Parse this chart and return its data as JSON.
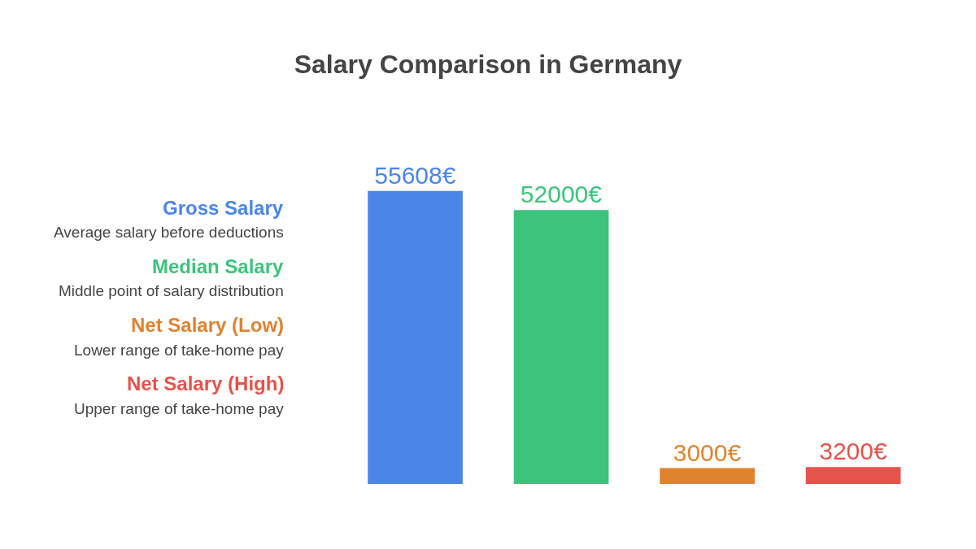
{
  "chart_data": {
    "type": "bar",
    "title": "Salary Comparison in Germany",
    "categories": [
      null,
      null,
      null,
      null
    ],
    "values": [
      55608,
      52000,
      3000,
      3200
    ],
    "colors": [
      "#4a86e8",
      "#3cc47c",
      "#e0832e",
      "#e5534b"
    ],
    "value_labels": [
      "55608€",
      "52000€",
      "3000€",
      "3200€"
    ],
    "annotations": [
      "Gross Salary",
      "Average salary before deductions",
      "Median Salary",
      "Middle point of salary distribution",
      "Net Salary (Low)",
      "Lower range of take-home pay",
      "Net Salary (High)",
      "Upper range of take-home pay"
    ],
    "tick_labels": false
  }
}
